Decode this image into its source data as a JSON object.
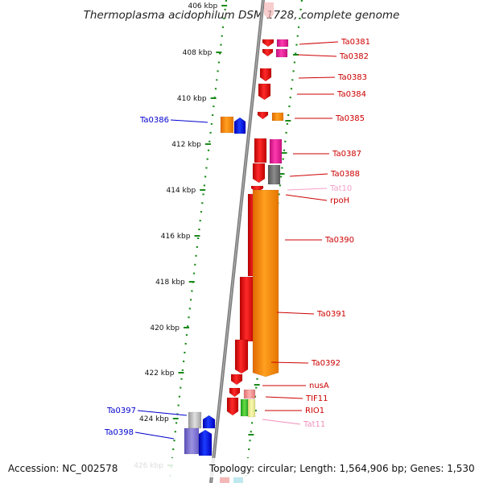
{
  "title": "Thermoplasma acidophilum DSM 1728, complete genome",
  "footer": {
    "accession": "Accession: NC_002578",
    "topology": "Topology: circular; Length: 1,564,906 bp; Genes: 1,530"
  },
  "scale_ticks": [
    {
      "label": "406 kbp",
      "faded": true
    },
    {
      "label": "408 kbp",
      "faded": false
    },
    {
      "label": "410 kbp",
      "faded": false
    },
    {
      "label": "412 kbp",
      "faded": false
    },
    {
      "label": "414 kbp",
      "faded": false
    },
    {
      "label": "416 kbp",
      "faded": false
    },
    {
      "label": "418 kbp",
      "faded": false
    },
    {
      "label": "420 kbp",
      "faded": false
    },
    {
      "label": "422 kbp",
      "faded": false
    },
    {
      "label": "424 kbp",
      "faded": false
    },
    {
      "label": "426 kbp",
      "faded": false
    }
  ],
  "genes": {
    "right": [
      {
        "label": "Ta0381",
        "color": "#cc0000"
      },
      {
        "label": "Ta0382",
        "color": "#cc0000"
      },
      {
        "label": "Ta0383",
        "color": "#cc0000"
      },
      {
        "label": "Ta0384",
        "color": "#cc0000"
      },
      {
        "label": "Ta0385",
        "color": "#cc0000"
      },
      {
        "label": "Ta0387",
        "color": "#cc0000"
      },
      {
        "label": "Ta0388",
        "color": "#cc0000"
      },
      {
        "label": "Tat10",
        "color": "#f4a0c8"
      },
      {
        "label": "rpoH",
        "color": "#cc0000"
      },
      {
        "label": "Ta0390",
        "color": "#cc0000"
      },
      {
        "label": "Ta0391",
        "color": "#cc0000"
      },
      {
        "label": "Ta0392",
        "color": "#cc0000"
      },
      {
        "label": "nusA",
        "color": "#cc0000"
      },
      {
        "label": "TIF11",
        "color": "#cc0000"
      },
      {
        "label": "RIO1",
        "color": "#cc0000"
      },
      {
        "label": "Tat11",
        "color": "#f090b8"
      }
    ],
    "left": [
      {
        "label": "Ta0386",
        "color": "#0000cc"
      },
      {
        "label": "Ta0397",
        "color": "#0000cc"
      },
      {
        "label": "Ta0398",
        "color": "#0000cc"
      }
    ]
  },
  "colors": {
    "forward_strand": "#ee0000",
    "reverse_strand": "#0000ee",
    "orange_track": "#ff8800",
    "magenta_track": "#ee1c9c",
    "grey_track": "#777777",
    "axis_dots": "#1a8a1a",
    "axis_line": "#7a7a7a"
  }
}
